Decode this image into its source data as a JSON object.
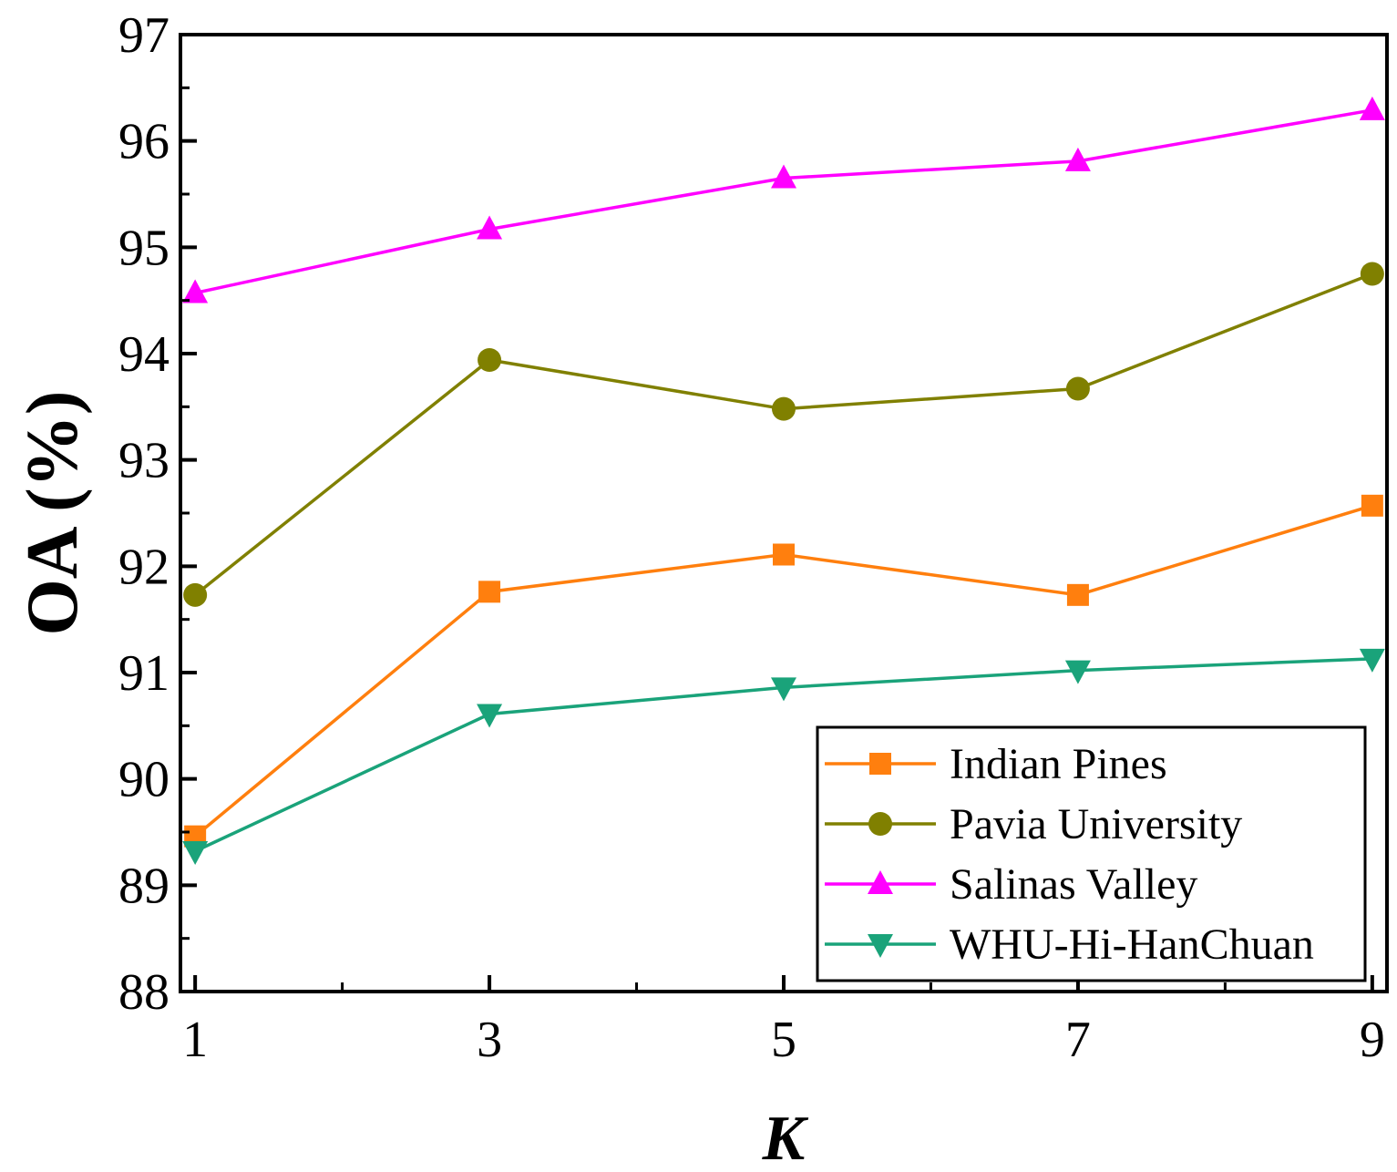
{
  "chart_data": {
    "type": "line",
    "title": "",
    "xlabel": "K",
    "ylabel": "OA (%)",
    "x": [
      1,
      3,
      5,
      7,
      9
    ],
    "x_ticks": [
      "1",
      "3",
      "5",
      "7",
      "9"
    ],
    "y_ticks": [
      "88",
      "89",
      "90",
      "91",
      "92",
      "93",
      "94",
      "95",
      "96",
      "97"
    ],
    "xlim": [
      0.9,
      9.1
    ],
    "ylim": [
      88,
      97
    ],
    "grid": false,
    "legend_position": "bottom-right",
    "series": [
      {
        "name": "Indian Pines",
        "color": "#ff7f0e",
        "marker": "square",
        "values": [
          89.46,
          91.76,
          92.11,
          91.73,
          92.57
        ]
      },
      {
        "name": "Pavia University",
        "color": "#808000",
        "marker": "circle",
        "values": [
          91.73,
          93.94,
          93.48,
          93.67,
          94.75
        ]
      },
      {
        "name": "Salinas Valley",
        "color": "#ff00ff",
        "marker": "triangle-up",
        "values": [
          94.57,
          95.17,
          95.65,
          95.81,
          96.29
        ]
      },
      {
        "name": "WHU-Hi-HanChuan",
        "color": "#1aa37a",
        "marker": "triangle-down",
        "values": [
          89.32,
          90.61,
          90.86,
          91.02,
          91.13
        ]
      }
    ]
  }
}
